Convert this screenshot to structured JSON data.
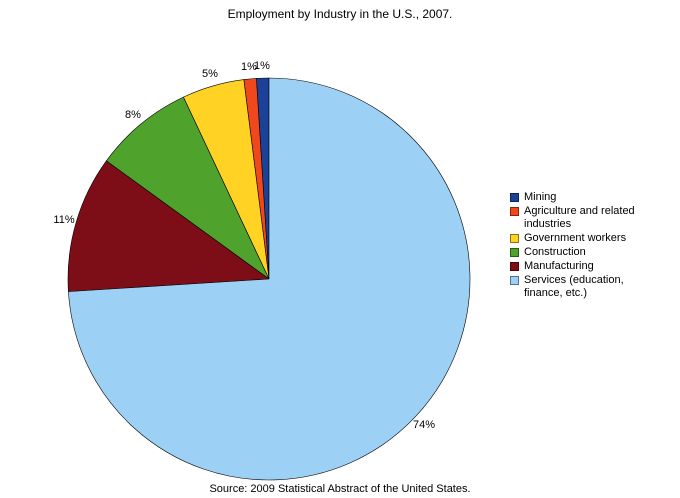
{
  "page": {
    "background_color": "#ffffff"
  },
  "chart_data": {
    "type": "pie",
    "title": "Employment by Industry in the U.S., 2007.",
    "source": "Source: 2009 Statistical Abstract of the United States.",
    "legend_position": "right",
    "start_angle": 90,
    "direction": "counterclockwise",
    "value_label_format": "{value}%",
    "slices": [
      {
        "label": "Mining",
        "value": 1,
        "color": "#1b4298"
      },
      {
        "label": "Agriculture and related industries",
        "value": 1,
        "color": "#f0471d"
      },
      {
        "label": "Government workers",
        "value": 5,
        "color": "#ffd224"
      },
      {
        "label": "Construction",
        "value": 8,
        "color": "#4fa22c"
      },
      {
        "label": "Manufacturing",
        "value": 11,
        "color": "#7d0e18"
      },
      {
        "label": "Services (education, finance, etc.)",
        "value": 74,
        "color": "#9cd0f5"
      }
    ]
  }
}
